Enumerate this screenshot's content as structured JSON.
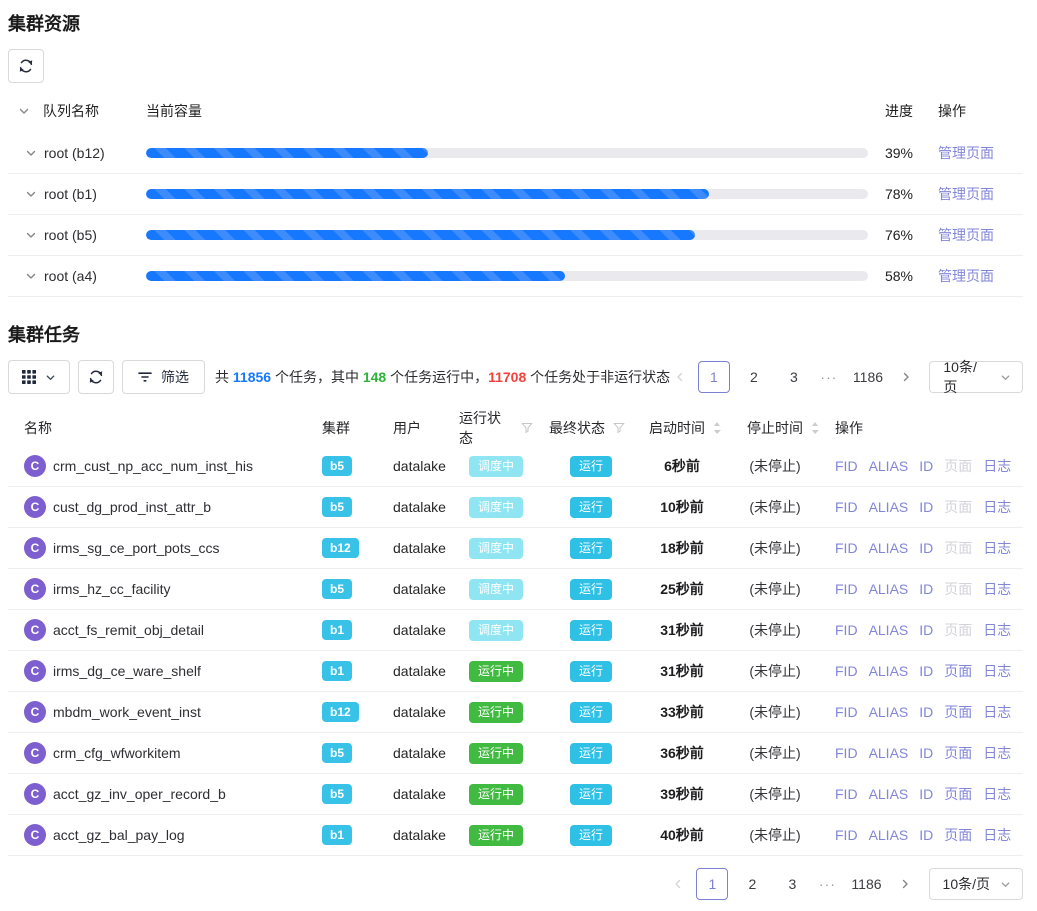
{
  "colors": {
    "accent_blue": "#1677ff",
    "summary_green": "#2eb33a",
    "summary_red": "#f2413d",
    "link_purple": "#8286d9",
    "cluster_badge": "#39c2e8",
    "scheduling_badge": "#8fe6f2",
    "running_badge": "#40ba40",
    "final_badge": "#2fc0e6",
    "avatar_purple": "#7d5fd0",
    "progress_fill": "#1677ff"
  },
  "resources": {
    "title": "集群资源",
    "header": {
      "queue": "队列名称",
      "capacity": "当前容量",
      "progress": "进度",
      "ops": "操作"
    },
    "manage_label": "管理页面",
    "rows": [
      {
        "name": "root (b12)",
        "percent": 39,
        "percent_label": "39%"
      },
      {
        "name": "root (b1)",
        "percent": 78,
        "percent_label": "78%"
      },
      {
        "name": "root (b5)",
        "percent": 76,
        "percent_label": "76%"
      },
      {
        "name": "root (a4)",
        "percent": 58,
        "percent_label": "58%"
      }
    ]
  },
  "tasks": {
    "title": "集群任务",
    "toolbar": {
      "filter_label": "筛选"
    },
    "summary": {
      "p1": "共 ",
      "total": "11856",
      "p2": " 个任务，其中 ",
      "running": "148",
      "p3": " 个任务运行中，",
      "not_running": "11708",
      "p4": " 个任务处于非运行状态"
    },
    "pagination": {
      "pages": [
        "1",
        "2",
        "3"
      ],
      "active": "1",
      "ellipsis": "···",
      "last_page": "1186",
      "page_size": "10条/页"
    },
    "columns": {
      "name": "名称",
      "cluster": "集群",
      "user": "用户",
      "run_status": "运行状态",
      "final_status": "最终状态",
      "start_time": "启动时间",
      "stop_time": "停止时间",
      "ops": "操作"
    },
    "ops_labels": {
      "fid": "FID",
      "alias": "ALIAS",
      "id": "ID",
      "page": "页面",
      "log": "日志"
    },
    "avatar_letter": "C",
    "rows": [
      {
        "name": "crm_cust_np_acc_num_inst_his",
        "cluster": "b5",
        "user": "datalake",
        "run_status": {
          "label": "调度中",
          "type": "scheduling"
        },
        "final_status": "运行",
        "start_time": "6秒前",
        "stop_time": "(未停止)",
        "page_enabled": false
      },
      {
        "name": "cust_dg_prod_inst_attr_b",
        "cluster": "b5",
        "user": "datalake",
        "run_status": {
          "label": "调度中",
          "type": "scheduling"
        },
        "final_status": "运行",
        "start_time": "10秒前",
        "stop_time": "(未停止)",
        "page_enabled": false
      },
      {
        "name": "irms_sg_ce_port_pots_ccs",
        "cluster": "b12",
        "user": "datalake",
        "run_status": {
          "label": "调度中",
          "type": "scheduling"
        },
        "final_status": "运行",
        "start_time": "18秒前",
        "stop_time": "(未停止)",
        "page_enabled": false
      },
      {
        "name": "irms_hz_cc_facility",
        "cluster": "b5",
        "user": "datalake",
        "run_status": {
          "label": "调度中",
          "type": "scheduling"
        },
        "final_status": "运行",
        "start_time": "25秒前",
        "stop_time": "(未停止)",
        "page_enabled": false
      },
      {
        "name": "acct_fs_remit_obj_detail",
        "cluster": "b1",
        "user": "datalake",
        "run_status": {
          "label": "调度中",
          "type": "scheduling"
        },
        "final_status": "运行",
        "start_time": "31秒前",
        "stop_time": "(未停止)",
        "page_enabled": false
      },
      {
        "name": "irms_dg_ce_ware_shelf",
        "cluster": "b1",
        "user": "datalake",
        "run_status": {
          "label": "运行中",
          "type": "running"
        },
        "final_status": "运行",
        "start_time": "31秒前",
        "stop_time": "(未停止)",
        "page_enabled": true
      },
      {
        "name": "mbdm_work_event_inst",
        "cluster": "b12",
        "user": "datalake",
        "run_status": {
          "label": "运行中",
          "type": "running"
        },
        "final_status": "运行",
        "start_time": "33秒前",
        "stop_time": "(未停止)",
        "page_enabled": true
      },
      {
        "name": "crm_cfg_wfworkitem",
        "cluster": "b5",
        "user": "datalake",
        "run_status": {
          "label": "运行中",
          "type": "running"
        },
        "final_status": "运行",
        "start_time": "36秒前",
        "stop_time": "(未停止)",
        "page_enabled": true
      },
      {
        "name": "acct_gz_inv_oper_record_b",
        "cluster": "b5",
        "user": "datalake",
        "run_status": {
          "label": "运行中",
          "type": "running"
        },
        "final_status": "运行",
        "start_time": "39秒前",
        "stop_time": "(未停止)",
        "page_enabled": true
      },
      {
        "name": "acct_gz_bal_pay_log",
        "cluster": "b1",
        "user": "datalake",
        "run_status": {
          "label": "运行中",
          "type": "running"
        },
        "final_status": "运行",
        "start_time": "40秒前",
        "stop_time": "(未停止)",
        "page_enabled": true
      }
    ]
  }
}
